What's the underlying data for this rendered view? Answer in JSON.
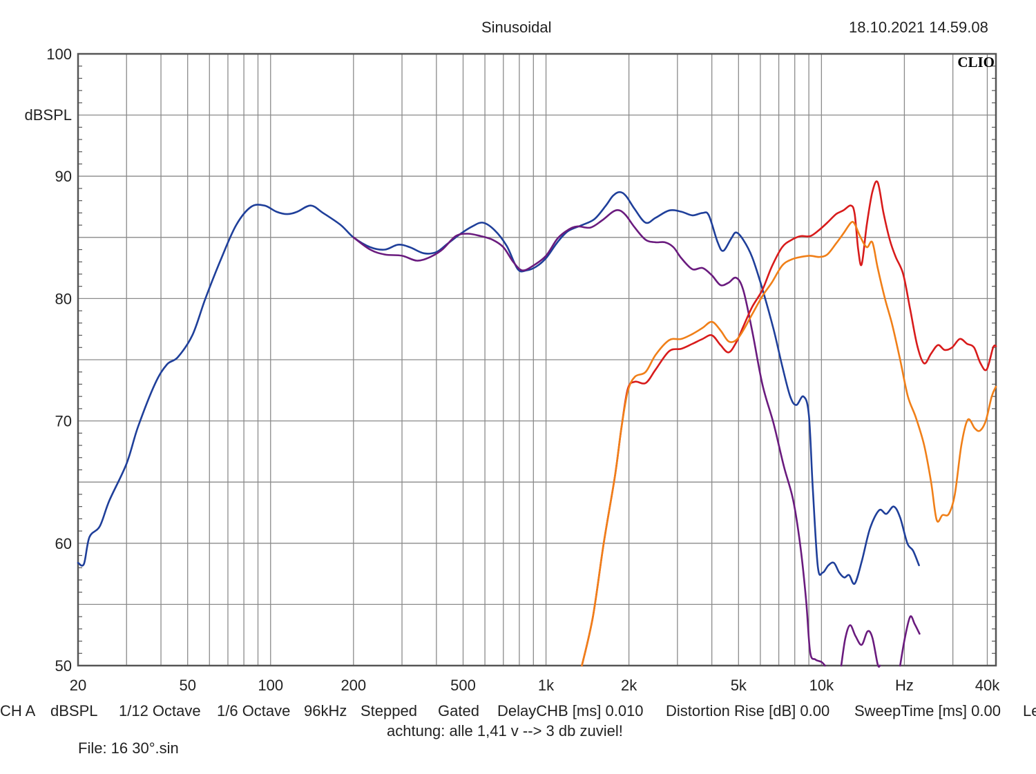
{
  "header": {
    "title": "Sinusoidal",
    "timestamp": "18.10.2021 14.59.08"
  },
  "logo": "CLIO",
  "chart_data": {
    "type": "line",
    "x_scale": "log",
    "xlim": [
      20,
      43000
    ],
    "ylim": [
      50,
      100
    ],
    "ylabel": "dBSPL",
    "xlabel": "Hz",
    "grid": true,
    "x_ticks": [
      {
        "v": 20,
        "label": "20"
      },
      {
        "v": 50,
        "label": "50"
      },
      {
        "v": 100,
        "label": "100"
      },
      {
        "v": 200,
        "label": "200"
      },
      {
        "v": 500,
        "label": "500"
      },
      {
        "v": 1000,
        "label": "1k"
      },
      {
        "v": 2000,
        "label": "2k"
      },
      {
        "v": 5000,
        "label": "5k"
      },
      {
        "v": 10000,
        "label": "10k"
      },
      {
        "v": 20000,
        "label": "Hz"
      },
      {
        "v": 40000,
        "label": "40k"
      }
    ],
    "y_ticks": [
      {
        "v": 100,
        "label": "100"
      },
      {
        "v": 90,
        "label": "90"
      },
      {
        "v": 80,
        "label": "80"
      },
      {
        "v": 70,
        "label": "70"
      },
      {
        "v": 60,
        "label": "60"
      },
      {
        "v": 50,
        "label": "50"
      }
    ],
    "series": [
      {
        "color": "#1f3f9a",
        "points": [
          [
            20,
            58.4
          ],
          [
            21,
            58.3
          ],
          [
            22,
            60.5
          ],
          [
            24,
            61.4
          ],
          [
            26,
            63.5
          ],
          [
            30,
            66.5
          ],
          [
            33,
            69.5
          ],
          [
            38,
            73
          ],
          [
            42,
            74.6
          ],
          [
            46,
            75.2
          ],
          [
            52,
            77
          ],
          [
            58,
            80
          ],
          [
            66,
            83.2
          ],
          [
            75,
            86
          ],
          [
            85,
            87.5
          ],
          [
            95,
            87.6
          ],
          [
            105,
            87.1
          ],
          [
            115,
            86.9
          ],
          [
            125,
            87.1
          ],
          [
            140,
            87.6
          ],
          [
            155,
            87
          ],
          [
            180,
            86
          ],
          [
            200,
            85
          ],
          [
            230,
            84.2
          ],
          [
            260,
            84
          ],
          [
            290,
            84.4
          ],
          [
            320,
            84.2
          ],
          [
            360,
            83.7
          ],
          [
            400,
            83.8
          ],
          [
            440,
            84.5
          ],
          [
            490,
            85.3
          ],
          [
            540,
            85.9
          ],
          [
            590,
            86.2
          ],
          [
            650,
            85.6
          ],
          [
            720,
            84.3
          ],
          [
            790,
            82.4
          ],
          [
            850,
            82.3
          ],
          [
            920,
            82.6
          ],
          [
            1000,
            83.3
          ],
          [
            1100,
            84.6
          ],
          [
            1200,
            85.5
          ],
          [
            1350,
            86
          ],
          [
            1500,
            86.5
          ],
          [
            1650,
            87.6
          ],
          [
            1750,
            88.4
          ],
          [
            1850,
            88.7
          ],
          [
            1950,
            88.4
          ],
          [
            2100,
            87.3
          ],
          [
            2300,
            86.2
          ],
          [
            2500,
            86.6
          ],
          [
            2800,
            87.2
          ],
          [
            3100,
            87.1
          ],
          [
            3400,
            86.8
          ],
          [
            3700,
            87
          ],
          [
            3900,
            86.8
          ],
          [
            4200,
            84.6
          ],
          [
            4400,
            83.9
          ],
          [
            4700,
            84.9
          ],
          [
            4900,
            85.4
          ],
          [
            5200,
            84.8
          ],
          [
            5600,
            83.4
          ],
          [
            6100,
            80.8
          ],
          [
            6700,
            77.5
          ],
          [
            7200,
            74.5
          ],
          [
            7700,
            72
          ],
          [
            8100,
            71.3
          ],
          [
            8600,
            72
          ],
          [
            9000,
            70.5
          ],
          [
            9300,
            64.5
          ],
          [
            9700,
            58.1
          ],
          [
            10100,
            57.6
          ],
          [
            10600,
            58.2
          ],
          [
            11100,
            58.4
          ],
          [
            11600,
            57.6
          ],
          [
            12100,
            57.2
          ],
          [
            12600,
            57.4
          ],
          [
            13200,
            56.7
          ],
          [
            14000,
            58.5
          ],
          [
            15000,
            61.2
          ],
          [
            16200,
            62.7
          ],
          [
            17200,
            62.4
          ],
          [
            18300,
            63
          ],
          [
            19300,
            62.1
          ],
          [
            20500,
            60
          ],
          [
            21500,
            59.4
          ],
          [
            22600,
            58.2
          ]
        ]
      },
      {
        "color": "#6a1b7e",
        "points": [
          [
            200,
            85
          ],
          [
            230,
            84
          ],
          [
            260,
            83.6
          ],
          [
            300,
            83.5
          ],
          [
            340,
            83.1
          ],
          [
            380,
            83.4
          ],
          [
            420,
            84
          ],
          [
            470,
            85.1
          ],
          [
            520,
            85.3
          ],
          [
            580,
            85.1
          ],
          [
            640,
            84.8
          ],
          [
            700,
            84.2
          ],
          [
            760,
            83
          ],
          [
            820,
            82.3
          ],
          [
            900,
            82.7
          ],
          [
            1000,
            83.5
          ],
          [
            1100,
            84.9
          ],
          [
            1200,
            85.6
          ],
          [
            1300,
            85.9
          ],
          [
            1450,
            85.8
          ],
          [
            1600,
            86.4
          ],
          [
            1750,
            87.1
          ],
          [
            1850,
            87.2
          ],
          [
            1950,
            86.8
          ],
          [
            2100,
            85.8
          ],
          [
            2300,
            84.8
          ],
          [
            2500,
            84.6
          ],
          [
            2700,
            84.6
          ],
          [
            2900,
            84.2
          ],
          [
            3100,
            83.3
          ],
          [
            3400,
            82.4
          ],
          [
            3700,
            82.5
          ],
          [
            4000,
            81.9
          ],
          [
            4300,
            81.1
          ],
          [
            4600,
            81.3
          ],
          [
            4900,
            81.7
          ],
          [
            5200,
            80.7
          ],
          [
            5600,
            77.4
          ],
          [
            6100,
            73
          ],
          [
            6700,
            69.8
          ],
          [
            7300,
            66.3
          ],
          [
            7900,
            63.5
          ],
          [
            8400,
            59.6
          ],
          [
            8800,
            55.3
          ],
          [
            9100,
            51.1
          ],
          [
            9500,
            50.5
          ],
          [
            10000,
            50.3
          ],
          [
            10300,
            50
          ]
        ]
      },
      {
        "color": "#6a1b7e",
        "points": [
          [
            11800,
            50
          ],
          [
            12200,
            52.2
          ],
          [
            12700,
            53.3
          ],
          [
            13300,
            52.4
          ],
          [
            14000,
            51.7
          ],
          [
            14700,
            52.8
          ],
          [
            15300,
            52.3
          ],
          [
            16000,
            50.1
          ],
          [
            16300,
            50
          ]
        ]
      },
      {
        "color": "#6a1b7e",
        "points": [
          [
            19300,
            50
          ],
          [
            20100,
            52.3
          ],
          [
            21000,
            54
          ],
          [
            21800,
            53.4
          ],
          [
            22700,
            52.6
          ]
        ]
      },
      {
        "color": "#d81b1b",
        "points": [
          [
            1350,
            50
          ],
          [
            1480,
            54
          ],
          [
            1620,
            60
          ],
          [
            1780,
            65.5
          ],
          [
            1880,
            69.5
          ],
          [
            1980,
            72.6
          ],
          [
            2100,
            73.2
          ],
          [
            2300,
            73.1
          ],
          [
            2500,
            74.2
          ],
          [
            2800,
            75.7
          ],
          [
            3100,
            75.9
          ],
          [
            3400,
            76.3
          ],
          [
            3700,
            76.7
          ],
          [
            4000,
            77
          ],
          [
            4300,
            76.2
          ],
          [
            4600,
            75.6
          ],
          [
            4900,
            76.4
          ],
          [
            5200,
            77.7
          ],
          [
            5600,
            79.3
          ],
          [
            6100,
            80.7
          ],
          [
            6600,
            82.6
          ],
          [
            7200,
            84.2
          ],
          [
            7800,
            84.8
          ],
          [
            8400,
            85.1
          ],
          [
            9100,
            85.1
          ],
          [
            9800,
            85.6
          ],
          [
            10500,
            86.2
          ],
          [
            11300,
            86.9
          ],
          [
            12000,
            87.2
          ],
          [
            12800,
            87.6
          ],
          [
            13200,
            86.9
          ],
          [
            13600,
            84
          ],
          [
            14000,
            82.8
          ],
          [
            14600,
            86
          ],
          [
            15300,
            88.7
          ],
          [
            16000,
            89.5
          ],
          [
            16800,
            87
          ],
          [
            17700,
            84.8
          ],
          [
            18600,
            83.4
          ],
          [
            19800,
            82
          ],
          [
            21000,
            79.1
          ],
          [
            22300,
            76.1
          ],
          [
            23600,
            74.7
          ],
          [
            25000,
            75.5
          ],
          [
            26500,
            76.2
          ],
          [
            28000,
            75.8
          ],
          [
            29800,
            76
          ],
          [
            31800,
            76.7
          ],
          [
            33800,
            76.3
          ],
          [
            35800,
            76
          ],
          [
            37800,
            74.7
          ],
          [
            39800,
            74.2
          ],
          [
            42000,
            76
          ],
          [
            43000,
            76.1
          ]
        ]
      },
      {
        "color": "#f07f18",
        "points": [
          [
            1350,
            50
          ],
          [
            1480,
            54
          ],
          [
            1620,
            60
          ],
          [
            1780,
            65.5
          ],
          [
            1880,
            69.5
          ],
          [
            1980,
            72.4
          ],
          [
            2100,
            73.6
          ],
          [
            2300,
            74
          ],
          [
            2500,
            75.4
          ],
          [
            2800,
            76.6
          ],
          [
            3100,
            76.7
          ],
          [
            3400,
            77.1
          ],
          [
            3700,
            77.6
          ],
          [
            4000,
            78.1
          ],
          [
            4300,
            77.4
          ],
          [
            4600,
            76.5
          ],
          [
            4900,
            76.6
          ],
          [
            5200,
            77.4
          ],
          [
            5600,
            78.7
          ],
          [
            6100,
            80.2
          ],
          [
            6600,
            81.3
          ],
          [
            7200,
            82.7
          ],
          [
            7800,
            83.2
          ],
          [
            8400,
            83.4
          ],
          [
            9100,
            83.5
          ],
          [
            9800,
            83.4
          ],
          [
            10500,
            83.6
          ],
          [
            11300,
            84.5
          ],
          [
            12000,
            85.3
          ],
          [
            12800,
            86.2
          ],
          [
            13200,
            86.1
          ],
          [
            13800,
            85.1
          ],
          [
            14600,
            84.2
          ],
          [
            15300,
            84.6
          ],
          [
            16000,
            82.5
          ],
          [
            17000,
            80
          ],
          [
            18100,
            77.8
          ],
          [
            19300,
            75
          ],
          [
            20600,
            72
          ],
          [
            22000,
            70.3
          ],
          [
            23600,
            68
          ],
          [
            25000,
            65
          ],
          [
            26200,
            61.9
          ],
          [
            27500,
            62.3
          ],
          [
            29000,
            62.4
          ],
          [
            30500,
            64
          ],
          [
            32200,
            68
          ],
          [
            34000,
            70.1
          ],
          [
            36000,
            69.4
          ],
          [
            37600,
            69.2
          ],
          [
            39500,
            70
          ],
          [
            41500,
            72
          ],
          [
            43000,
            72.8
          ]
        ]
      }
    ]
  },
  "status": {
    "channel": "CH A",
    "unit": "dBSPL",
    "smoothing1": "1/12 Octave",
    "smoothing2": "1/6 Octave",
    "samplerate": "96kHz",
    "mode1": "Stepped",
    "mode2": "Gated",
    "delay": "DelayCHB [ms] 0.010",
    "distortion": "Distortion Rise [dB] 0.00",
    "sweeptime": "SweepTime [ms] 0.00",
    "trailing": "Le"
  },
  "note": "achtung: alle 1,41 v --> 3 db zuviel!",
  "file": "File: 16 30°.sin"
}
